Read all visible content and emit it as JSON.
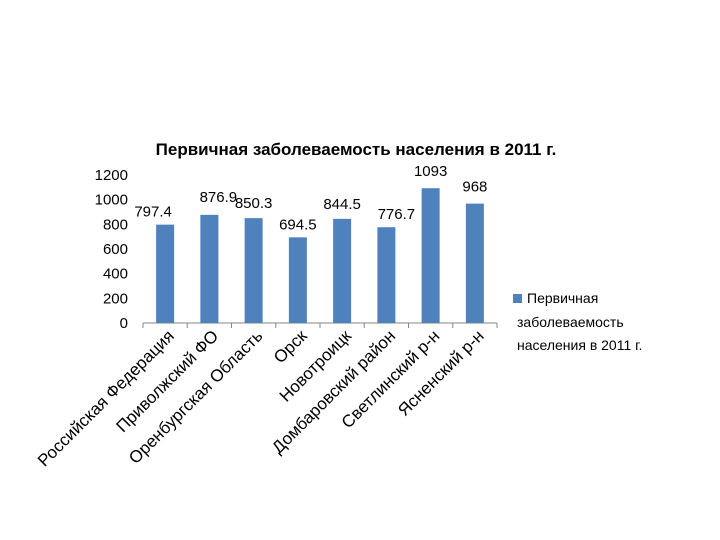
{
  "chart_data": {
    "type": "bar",
    "title": "Первичная заболеваемость населения в 2011 г.",
    "categories": [
      "Российская Федерация",
      "Приволжский ФО",
      "Оренбургская Область",
      "Орск",
      "Новотроицк",
      "Домбаровский район",
      "Светлинский р-н",
      "Ясненский р-н"
    ],
    "series": [
      {
        "name": "Первичная заболеваемость населения в 2011 г.",
        "values": [
          797.4,
          876.9,
          850.3,
          694.5,
          844.5,
          776.7,
          1093,
          968
        ],
        "color": "#4f81bd"
      }
    ],
    "data_labels": [
      "797.4",
      "876.9",
      "850.3",
      "694.5",
      "844.5",
      "776.7",
      "1093",
      "968"
    ],
    "y_ticks": [
      "0",
      "200",
      "400",
      "600",
      "800",
      "1000",
      "1200"
    ],
    "ylim": [
      0,
      1200
    ],
    "grid": false,
    "legend_position": "right",
    "legend_lines": [
      "Первичная",
      "заболеваемость",
      "населения в 2011 г."
    ]
  }
}
